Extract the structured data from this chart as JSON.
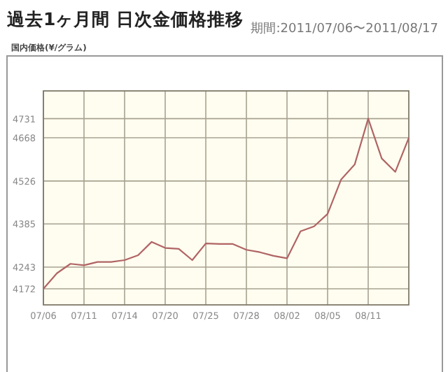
{
  "chart_data": {
    "type": "line",
    "title": "過去1ヶ月間 日次金価格推移",
    "subtitle": "期間:2011/07/06〜2011/08/17",
    "ylabel": "国内価格(¥/グラム)",
    "categories": [
      "07/06",
      null,
      null,
      "07/11",
      null,
      null,
      "07/14",
      null,
      null,
      "07/20",
      null,
      null,
      "07/25",
      null,
      null,
      "07/28",
      null,
      null,
      "08/02",
      null,
      null,
      "08/05",
      null,
      null,
      "08/11",
      null,
      null,
      null
    ],
    "series": [
      {
        "color": "#b06464",
        "values": [
          4172,
          4223,
          4254,
          4249,
          4260,
          4260,
          4266,
          4282,
          4326,
          4306,
          4303,
          4266,
          4321,
          4319,
          4319,
          4300,
          4292,
          4280,
          4272,
          4361,
          4377,
          4418,
          4531,
          4580,
          4731,
          4600,
          4556,
          4668
        ]
      }
    ],
    "ylim": [
      4119,
      4822
    ],
    "yticks": [
      4172,
      4243,
      4385,
      4526,
      4668,
      4731
    ],
    "grid": true,
    "marker": "none",
    "line_style": "solid"
  }
}
